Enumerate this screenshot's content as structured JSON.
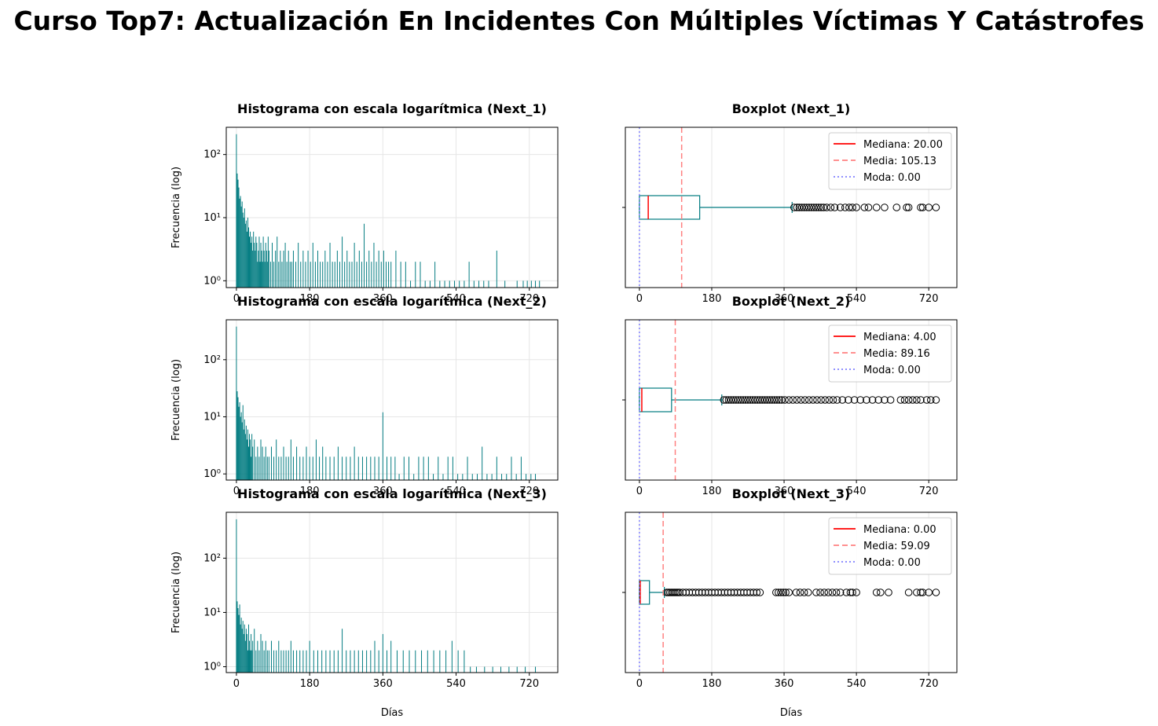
{
  "title": "Curso Top7: Actualización En Incidentes Con Múltiples Víctimas Y Catástrofes",
  "colors": {
    "bar": "#007b80",
    "box": "#007b80",
    "median": "#ff0000",
    "mean": "#ff8080",
    "mode": "#8080ff",
    "grid": "#e6e6e6"
  },
  "chart_data": [
    {
      "type": "bar",
      "title": "Histograma con escala logarítmica (Next_1)",
      "ylabel": "Frecuencia (log)",
      "xlabel": "",
      "yscale": "log",
      "xlim": [
        -25,
        790
      ],
      "ylim": [
        0.78,
        270
      ],
      "xticks": [
        0,
        180,
        360,
        540,
        720
      ],
      "yticks": [
        1,
        10,
        100
      ],
      "ytick_labels": [
        "10⁰",
        "10¹",
        "10²"
      ],
      "x": [
        0,
        2,
        4,
        6,
        8,
        10,
        12,
        14,
        16,
        18,
        20,
        22,
        24,
        26,
        28,
        30,
        32,
        34,
        36,
        38,
        40,
        42,
        44,
        46,
        48,
        50,
        52,
        54,
        56,
        58,
        60,
        62,
        64,
        66,
        68,
        70,
        72,
        74,
        76,
        78,
        80,
        84,
        88,
        92,
        96,
        100,
        104,
        108,
        112,
        116,
        120,
        124,
        128,
        132,
        136,
        140,
        146,
        152,
        158,
        164,
        170,
        176,
        182,
        188,
        194,
        200,
        206,
        212,
        218,
        224,
        230,
        236,
        242,
        248,
        254,
        260,
        266,
        272,
        278,
        284,
        290,
        296,
        302,
        308,
        314,
        320,
        326,
        332,
        338,
        344,
        350,
        356,
        362,
        368,
        374,
        380,
        392,
        404,
        416,
        428,
        440,
        452,
        464,
        476,
        488,
        500,
        512,
        524,
        536,
        548,
        560,
        572,
        584,
        596,
        608,
        620,
        640,
        660,
        690,
        705,
        715,
        725,
        735,
        745
      ],
      "values": [
        210,
        50,
        40,
        30,
        20,
        22,
        15,
        18,
        12,
        10,
        14,
        8,
        9,
        6,
        10,
        7,
        5,
        6,
        4,
        5,
        3,
        6,
        4,
        3,
        5,
        4,
        2,
        3,
        5,
        2,
        4,
        3,
        2,
        5,
        3,
        2,
        4,
        3,
        2,
        5,
        3,
        2,
        4,
        2,
        3,
        5,
        2,
        3,
        2,
        3,
        4,
        2,
        3,
        2,
        2,
        3,
        2,
        4,
        2,
        3,
        2,
        3,
        2,
        4,
        2,
        3,
        2,
        2,
        3,
        2,
        4,
        2,
        2,
        3,
        2,
        5,
        2,
        3,
        2,
        2,
        4,
        2,
        3,
        2,
        8,
        2,
        3,
        2,
        4,
        2,
        3,
        2,
        3,
        2,
        2,
        2,
        3,
        2,
        2,
        1,
        2,
        2,
        1,
        1,
        2,
        1,
        1,
        1,
        1,
        1,
        1,
        2,
        1,
        1,
        1,
        1,
        3,
        1,
        1,
        1,
        1,
        1,
        1,
        1
      ]
    },
    {
      "type": "boxplot",
      "title": "Boxplot (Next_1)",
      "xlabel": "",
      "xlim": [
        -35,
        790
      ],
      "xticks": [
        0,
        180,
        360,
        540,
        720
      ],
      "whisker_low": 0,
      "q1": 0,
      "median": 20,
      "q3": 150,
      "whisker_high": 380,
      "mean": 105.13,
      "mode": 0,
      "outliers": [
        385,
        392,
        398,
        404,
        410,
        416,
        422,
        428,
        434,
        440,
        446,
        452,
        458,
        466,
        476,
        486,
        500,
        512,
        522,
        530,
        540,
        560,
        570,
        590,
        610,
        640,
        665,
        670,
        700,
        705,
        720,
        738
      ],
      "legend": [
        "Mediana: 20.00",
        "Media: 105.13",
        "Moda: 0.00"
      ]
    },
    {
      "type": "bar",
      "title": "Histograma con escala logarítmica (Next_2)",
      "ylabel": "Frecuencia (log)",
      "xlabel": "",
      "yscale": "log",
      "xlim": [
        -25,
        790
      ],
      "ylim": [
        0.78,
        500
      ],
      "xticks": [
        0,
        180,
        360,
        540,
        720
      ],
      "yticks": [
        1,
        10,
        100
      ],
      "ytick_labels": [
        "10⁰",
        "10¹",
        "10²"
      ],
      "x": [
        0,
        2,
        4,
        6,
        8,
        10,
        12,
        14,
        16,
        18,
        20,
        22,
        24,
        26,
        28,
        30,
        32,
        34,
        36,
        38,
        40,
        44,
        48,
        52,
        56,
        60,
        64,
        68,
        72,
        76,
        80,
        86,
        92,
        98,
        104,
        110,
        116,
        122,
        128,
        134,
        140,
        148,
        156,
        164,
        172,
        180,
        188,
        196,
        204,
        212,
        220,
        230,
        240,
        250,
        260,
        270,
        280,
        290,
        300,
        310,
        320,
        330,
        340,
        350,
        360,
        370,
        380,
        390,
        400,
        412,
        424,
        436,
        448,
        460,
        472,
        484,
        496,
        508,
        520,
        532,
        544,
        556,
        568,
        580,
        592,
        604,
        616,
        628,
        640,
        652,
        664,
        676,
        688,
        700,
        712,
        724,
        735
      ],
      "values": [
        380,
        28,
        22,
        15,
        18,
        10,
        12,
        8,
        16,
        6,
        9,
        5,
        7,
        4,
        6,
        3,
        5,
        4,
        2,
        5,
        3,
        4,
        2,
        3,
        2,
        4,
        3,
        2,
        3,
        2,
        2,
        3,
        2,
        4,
        2,
        2,
        3,
        2,
        2,
        4,
        2,
        3,
        2,
        2,
        3,
        2,
        2,
        4,
        2,
        3,
        2,
        2,
        2,
        3,
        2,
        2,
        2,
        3,
        2,
        2,
        2,
        2,
        2,
        2,
        12,
        2,
        2,
        2,
        1,
        2,
        2,
        1,
        2,
        2,
        2,
        1,
        2,
        1,
        2,
        2,
        1,
        1,
        2,
        1,
        1,
        3,
        1,
        1,
        2,
        1,
        1,
        2,
        1,
        2,
        1,
        1,
        1
      ]
    },
    {
      "type": "boxplot",
      "title": "Boxplot (Next_2)",
      "xlabel": "",
      "xlim": [
        -35,
        790
      ],
      "xticks": [
        0,
        180,
        360,
        540,
        720
      ],
      "whisker_low": 0,
      "q1": 0,
      "median": 4,
      "q3": 80,
      "whisker_high": 205,
      "mean": 89.16,
      "mode": 0,
      "outliers": [
        210,
        216,
        222,
        228,
        234,
        240,
        246,
        252,
        258,
        264,
        270,
        276,
        282,
        288,
        294,
        300,
        306,
        312,
        318,
        324,
        330,
        336,
        342,
        348,
        354,
        362,
        372,
        382,
        392,
        402,
        412,
        422,
        432,
        442,
        452,
        462,
        472,
        482,
        492,
        505,
        520,
        535,
        550,
        565,
        580,
        595,
        610,
        625,
        650,
        660,
        670,
        680,
        690,
        700,
        715,
        725,
        738
      ],
      "legend": [
        "Mediana: 4.00",
        "Media: 89.16",
        "Moda: 0.00"
      ]
    },
    {
      "type": "bar",
      "title": "Histograma con escala logarítmica (Next_3)",
      "ylabel": "Frecuencia (log)",
      "xlabel": "Días",
      "yscale": "log",
      "xlim": [
        -25,
        790
      ],
      "ylim": [
        0.78,
        700
      ],
      "xticks": [
        0,
        180,
        360,
        540,
        720
      ],
      "yticks": [
        1,
        10,
        100
      ],
      "ytick_labels": [
        "10⁰",
        "10¹",
        "10²"
      ],
      "x": [
        0,
        2,
        4,
        6,
        8,
        10,
        12,
        14,
        16,
        18,
        20,
        22,
        24,
        26,
        28,
        30,
        32,
        34,
        36,
        38,
        40,
        44,
        48,
        52,
        56,
        60,
        64,
        68,
        72,
        76,
        80,
        86,
        92,
        98,
        104,
        110,
        116,
        122,
        128,
        134,
        140,
        148,
        156,
        164,
        172,
        180,
        190,
        200,
        210,
        220,
        230,
        240,
        250,
        260,
        270,
        280,
        290,
        300,
        310,
        320,
        330,
        340,
        350,
        360,
        370,
        380,
        395,
        410,
        425,
        440,
        455,
        470,
        485,
        500,
        515,
        530,
        545,
        560,
        575,
        590,
        610,
        630,
        650,
        670,
        690,
        710,
        735
      ],
      "values": [
        520,
        16,
        12,
        9,
        14,
        6,
        8,
        5,
        7,
        4,
        6,
        3,
        5,
        4,
        2,
        6,
        3,
        2,
        4,
        2,
        3,
        5,
        2,
        3,
        2,
        4,
        3,
        2,
        3,
        2,
        2,
        3,
        2,
        2,
        3,
        2,
        2,
        2,
        2,
        3,
        2,
        2,
        2,
        2,
        2,
        3,
        2,
        2,
        2,
        2,
        2,
        2,
        2,
        5,
        2,
        2,
        2,
        2,
        2,
        2,
        2,
        3,
        2,
        4,
        2,
        3,
        2,
        2,
        2,
        2,
        2,
        2,
        2,
        2,
        2,
        3,
        2,
        2,
        1,
        1,
        1,
        1,
        1,
        1,
        1,
        1,
        1
      ]
    },
    {
      "type": "boxplot",
      "title": "Boxplot (Next_3)",
      "xlabel": "Días",
      "xlim": [
        -35,
        790
      ],
      "xticks": [
        0,
        180,
        360,
        540,
        720
      ],
      "whisker_low": 0,
      "q1": 0,
      "median": 0,
      "q3": 25,
      "whisker_high": 62,
      "mean": 59.09,
      "mode": 0,
      "outliers": [
        68,
        72,
        76,
        80,
        84,
        88,
        92,
        96,
        100,
        108,
        116,
        124,
        132,
        140,
        148,
        156,
        164,
        172,
        180,
        188,
        196,
        204,
        212,
        220,
        228,
        236,
        244,
        252,
        260,
        268,
        276,
        284,
        292,
        300,
        340,
        346,
        352,
        358,
        364,
        372,
        390,
        400,
        410,
        420,
        440,
        450,
        460,
        470,
        480,
        490,
        500,
        515,
        525,
        530,
        540,
        590,
        600,
        620,
        670,
        690,
        700,
        705,
        720,
        738
      ],
      "legend": [
        "Mediana: 0.00",
        "Media: 59.09",
        "Moda: 0.00"
      ]
    }
  ]
}
